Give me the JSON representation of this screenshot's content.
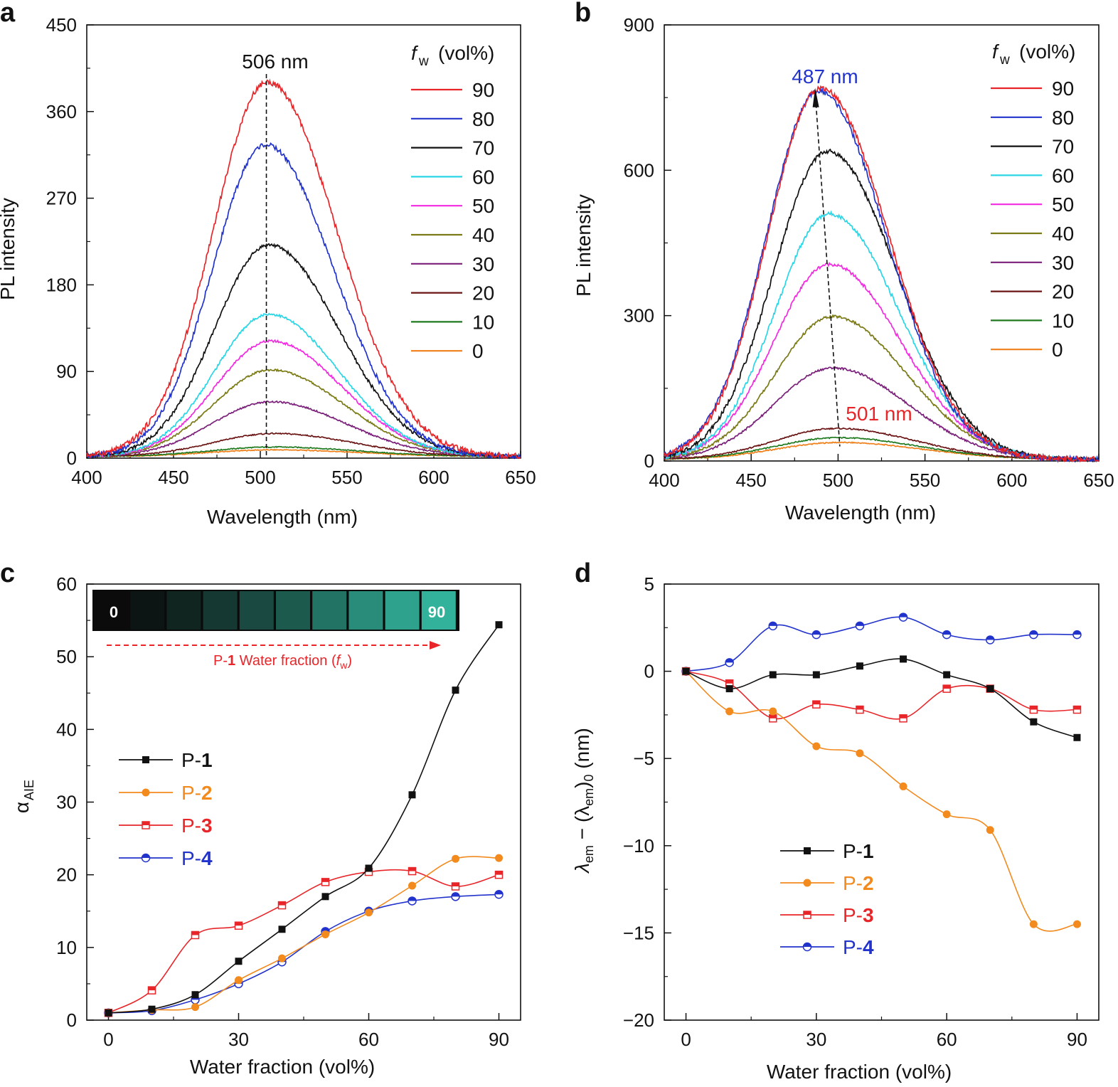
{
  "chart_data": [
    {
      "panel": "a",
      "type": "line",
      "xlabel": "Wavelength (nm)",
      "ylabel": "PL intensity",
      "xlim": [
        400,
        650
      ],
      "ylim": [
        0,
        450
      ],
      "xticks": [
        "400",
        "450",
        "500",
        "550",
        "600",
        "650"
      ],
      "yticks": [
        "0",
        "90",
        "180",
        "270",
        "360",
        "450"
      ],
      "annotation": "506 nm",
      "legend_title_f": "f",
      "legend_title_sub": "w",
      "legend_title_rest": "(vol%)",
      "series": [
        {
          "name": "90",
          "color": "#e8262a",
          "peak": 389,
          "center": 504,
          "sigma": 38
        },
        {
          "name": "80",
          "color": "#2233cc",
          "peak": 324,
          "center": 503,
          "sigma": 37
        },
        {
          "name": "70",
          "color": "#111111",
          "peak": 220,
          "center": 505,
          "sigma": 38
        },
        {
          "name": "60",
          "color": "#2ad6e6",
          "peak": 148,
          "center": 505,
          "sigma": 38
        },
        {
          "name": "50",
          "color": "#f22ae0",
          "peak": 120,
          "center": 506,
          "sigma": 39
        },
        {
          "name": "40",
          "color": "#7a7a16",
          "peak": 90,
          "center": 506,
          "sigma": 40
        },
        {
          "name": "30",
          "color": "#7a1f7a",
          "peak": 57,
          "center": 506,
          "sigma": 41
        },
        {
          "name": "20",
          "color": "#6b1414",
          "peak": 24,
          "center": 508,
          "sigma": 43
        },
        {
          "name": "10",
          "color": "#1f7a1f",
          "peak": 10,
          "center": 508,
          "sigma": 45
        },
        {
          "name": "0",
          "color": "#f07f1a",
          "peak": 7,
          "center": 508,
          "sigma": 46
        }
      ]
    },
    {
      "panel": "b",
      "type": "line",
      "xlabel": "Wavelength (nm)",
      "ylabel": "PL intensity",
      "xlim": [
        400,
        650
      ],
      "ylim": [
        0,
        900
      ],
      "xticks": [
        "400",
        "450",
        "500",
        "550",
        "600",
        "650"
      ],
      "yticks": [
        "0",
        "300",
        "600",
        "900"
      ],
      "annotation_top": "487 nm",
      "annotation_bottom": "501 nm",
      "legend_title_f": "f",
      "legend_title_sub": "w",
      "legend_title_rest": "(vol%)",
      "series": [
        {
          "name": "90",
          "color": "#e8262a",
          "peak": 767,
          "center": 490,
          "sigma": 37
        },
        {
          "name": "80",
          "color": "#2233cc",
          "peak": 760,
          "center": 489,
          "sigma": 37
        },
        {
          "name": "70",
          "color": "#111111",
          "peak": 636,
          "center": 494,
          "sigma": 38
        },
        {
          "name": "60",
          "color": "#2ad6e6",
          "peak": 507,
          "center": 495,
          "sigma": 38
        },
        {
          "name": "50",
          "color": "#f22ae0",
          "peak": 403,
          "center": 495,
          "sigma": 39
        },
        {
          "name": "40",
          "color": "#7a7a16",
          "peak": 295,
          "center": 497,
          "sigma": 40
        },
        {
          "name": "30",
          "color": "#7a1f7a",
          "peak": 189,
          "center": 497,
          "sigma": 41
        },
        {
          "name": "20",
          "color": "#6b1414",
          "peak": 64,
          "center": 499,
          "sigma": 43
        },
        {
          "name": "10",
          "color": "#1f7a1f",
          "peak": 45,
          "center": 500,
          "sigma": 44
        },
        {
          "name": "0",
          "color": "#f07f1a",
          "peak": 35,
          "center": 501,
          "sigma": 45
        }
      ]
    },
    {
      "panel": "c",
      "type": "line",
      "xlabel": "Water fraction (vol%)",
      "ylabel_main": "α",
      "ylabel_sub": "AIE",
      "xlim": [
        -5,
        95
      ],
      "ylim": [
        0,
        60
      ],
      "xticks": [
        "0",
        "30",
        "60",
        "90"
      ],
      "yticks": [
        "0",
        "10",
        "20",
        "30",
        "40",
        "50",
        "60"
      ],
      "inset_start_label": "0",
      "inset_end_label": "90",
      "inset_caption_a": "P-",
      "inset_caption_b": "1",
      "inset_caption_c": " Water fraction (",
      "inset_caption_f": "f",
      "inset_caption_sub": "w",
      "inset_caption_end": ")",
      "x": [
        0,
        10,
        20,
        30,
        40,
        50,
        60,
        70,
        80,
        90
      ],
      "series": [
        {
          "name_prefix": "P-",
          "name_num": "1",
          "color": "#111111",
          "marker": "square-filled",
          "values": [
            1.0,
            1.5,
            3.5,
            8.1,
            12.5,
            17.0,
            20.9,
            31.0,
            45.4,
            54.4
          ]
        },
        {
          "name_prefix": "P-",
          "name_num": "2",
          "color": "#f28a1e",
          "marker": "circle-filled",
          "values": [
            1.0,
            1.4,
            1.8,
            5.5,
            8.5,
            11.8,
            14.8,
            18.5,
            22.2,
            22.3
          ]
        },
        {
          "name_prefix": "P-",
          "name_num": "3",
          "color": "#e8262a",
          "marker": "square-half",
          "values": [
            1.0,
            4.1,
            11.7,
            13.0,
            15.8,
            19.0,
            20.4,
            20.5,
            18.4,
            20.0
          ]
        },
        {
          "name_prefix": "P-",
          "name_num": "4",
          "color": "#2233cc",
          "marker": "circle-half",
          "values": [
            1.0,
            1.3,
            2.8,
            5.0,
            8.0,
            12.2,
            15.0,
            16.4,
            17.0,
            17.3
          ]
        }
      ]
    },
    {
      "panel": "d",
      "type": "line",
      "xlabel": "Water fraction (vol%)",
      "ylabel_a": "λ",
      "ylabel_b": "em",
      "ylabel_c": " − (λ",
      "ylabel_d": "em",
      "ylabel_e": ")",
      "ylabel_f": "0",
      "ylabel_g": " (nm)",
      "xlim": [
        -5,
        95
      ],
      "ylim": [
        -20,
        5
      ],
      "xticks": [
        "0",
        "30",
        "60",
        "90"
      ],
      "yticks": [
        "−20",
        "−15",
        "−10",
        "−5",
        "0",
        "5"
      ],
      "x": [
        0,
        10,
        20,
        30,
        40,
        50,
        60,
        70,
        80,
        90
      ],
      "series": [
        {
          "name_prefix": "P-",
          "name_num": "1",
          "color": "#111111",
          "marker": "square-filled",
          "values": [
            0,
            -1.0,
            -0.2,
            -0.2,
            0.3,
            0.7,
            -0.2,
            -1.0,
            -2.9,
            -3.8
          ]
        },
        {
          "name_prefix": "P-",
          "name_num": "2",
          "color": "#f28a1e",
          "marker": "circle-filled",
          "values": [
            0,
            -2.3,
            -2.3,
            -4.3,
            -4.7,
            -6.6,
            -8.2,
            -9.1,
            -14.5,
            -14.5
          ]
        },
        {
          "name_prefix": "P-",
          "name_num": "3",
          "color": "#e8262a",
          "marker": "square-half",
          "values": [
            0,
            -0.7,
            -2.7,
            -1.9,
            -2.2,
            -2.7,
            -1.0,
            -1.0,
            -2.2,
            -2.2
          ]
        },
        {
          "name_prefix": "P-",
          "name_num": "4",
          "color": "#2233cc",
          "marker": "circle-half",
          "values": [
            0,
            0.5,
            2.6,
            2.1,
            2.6,
            3.1,
            2.1,
            1.8,
            2.1,
            2.1
          ]
        }
      ]
    }
  ],
  "panel_labels": [
    "a",
    "b",
    "c",
    "d"
  ]
}
